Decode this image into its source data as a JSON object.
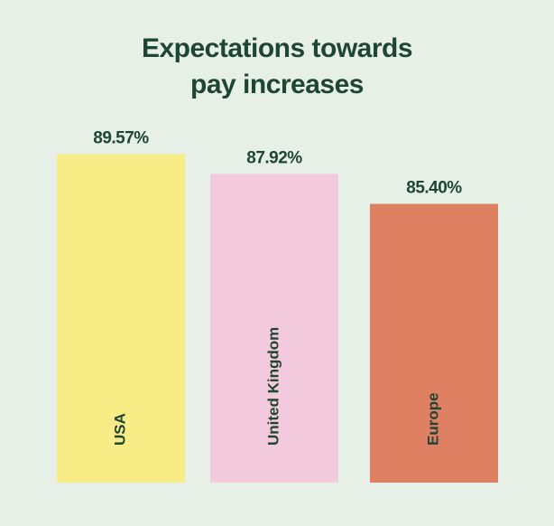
{
  "chart_data": {
    "type": "bar",
    "title": "Expectations towards pay increases",
    "categories": [
      "USA",
      "United Kingdom",
      "Europe"
    ],
    "values": [
      89.57,
      87.92,
      85.4
    ],
    "value_labels": [
      "89.57%",
      "87.92%",
      "85.40%"
    ],
    "colors": [
      "#f7ec85",
      "#f3cadb",
      "#e08063"
    ],
    "ylim": [
      62,
      90
    ]
  }
}
